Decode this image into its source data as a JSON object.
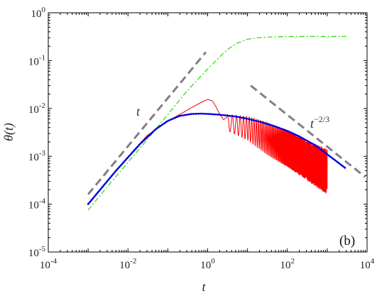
{
  "chart_data": {
    "type": "line",
    "xscale": "log",
    "yscale": "log",
    "xlim": [
      0.0001,
      10000
    ],
    "ylim": [
      1e-05,
      1
    ],
    "xlabel": "t",
    "ylabel": "θ(t)",
    "panel_label": "(b)",
    "x_ticks": [
      {
        "value": 0.0001,
        "base": "10",
        "exp": "-4"
      },
      {
        "value": 0.01,
        "base": "10",
        "exp": "-2"
      },
      {
        "value": 1,
        "base": "10",
        "exp": "0"
      },
      {
        "value": 100,
        "base": "10",
        "exp": "2"
      },
      {
        "value": 10000,
        "base": "10",
        "exp": "4"
      }
    ],
    "y_ticks": [
      {
        "value": 1e-05,
        "base": "10",
        "exp": "-5"
      },
      {
        "value": 0.0001,
        "base": "10",
        "exp": "-4"
      },
      {
        "value": 0.001,
        "base": "10",
        "exp": "-3"
      },
      {
        "value": 0.01,
        "base": "10",
        "exp": "-2"
      },
      {
        "value": 0.1,
        "base": "10",
        "exp": "-1"
      },
      {
        "value": 1,
        "base": "10",
        "exp": "0"
      }
    ],
    "series": [
      {
        "style": "dash-dot",
        "color": "#22dd00",
        "x": [
          0.001,
          0.003,
          0.01,
          0.03,
          0.1,
          0.3,
          1,
          2,
          3,
          5,
          10,
          20,
          50,
          100,
          300,
          1000,
          3000
        ],
        "y": [
          7.5e-05,
          0.00023,
          0.00075,
          0.0022,
          0.0075,
          0.023,
          0.067,
          0.12,
          0.165,
          0.225,
          0.28,
          0.305,
          0.315,
          0.318,
          0.32,
          0.32,
          0.32
        ]
      },
      {
        "style": "solid",
        "color": "#ff0000",
        "x": [
          0.001,
          0.003,
          0.01,
          0.03,
          0.1,
          0.2,
          0.4,
          0.7,
          1,
          1.3,
          1.6,
          2,
          2.5,
          3,
          4,
          5,
          7,
          10,
          20,
          50,
          100,
          200,
          500,
          1000
        ],
        "y": [
          0.0001,
          0.0003,
          0.00098,
          0.0027,
          0.0055,
          0.0075,
          0.0105,
          0.0135,
          0.0155,
          0.0145,
          0.011,
          0.0076,
          0.0058,
          0.0065,
          0.0071,
          0.0046,
          0.0064,
          0.0058,
          0.004,
          0.0025,
          0.0016,
          0.0011,
          0.0007,
          0.00048
        ],
        "oscillation_envelope": {
          "x": [
            3,
            10,
            30,
            100,
            300,
            1000
          ],
          "upper": [
            0.0075,
            0.0068,
            0.0052,
            0.0034,
            0.0022,
            0.0014
          ],
          "lower": [
            0.0035,
            0.0022,
            0.0011,
            0.0006,
            0.00032,
            0.00016
          ]
        }
      },
      {
        "style": "dotted",
        "color": "#0000dd",
        "x": [
          0.001,
          0.002,
          0.005,
          0.01,
          0.02,
          0.05,
          0.1,
          0.2,
          0.4,
          0.7,
          1,
          2,
          5,
          10,
          20,
          50,
          100,
          200,
          500,
          1000,
          3000
        ],
        "y": [
          0.0001,
          0.0002,
          0.0005,
          0.00095,
          0.0018,
          0.0037,
          0.0055,
          0.007,
          0.0077,
          0.0078,
          0.0077,
          0.0074,
          0.0068,
          0.0061,
          0.0053,
          0.0042,
          0.0034,
          0.0026,
          0.0017,
          0.0011,
          0.00055
        ]
      },
      {
        "style": "dashed",
        "color": "#808080",
        "label": "t",
        "x": [
          0.001,
          0.9
        ],
        "y": [
          0.00016,
          0.15
        ]
      },
      {
        "style": "dashed",
        "color": "#808080",
        "label": "t^{-2/3}",
        "x": [
          12,
          9000
        ],
        "y": [
          0.03,
          0.00037
        ]
      }
    ],
    "annotations": [
      {
        "text": "t",
        "style": "italic"
      },
      {
        "base": "t",
        "exp": "−2/3"
      }
    ]
  }
}
